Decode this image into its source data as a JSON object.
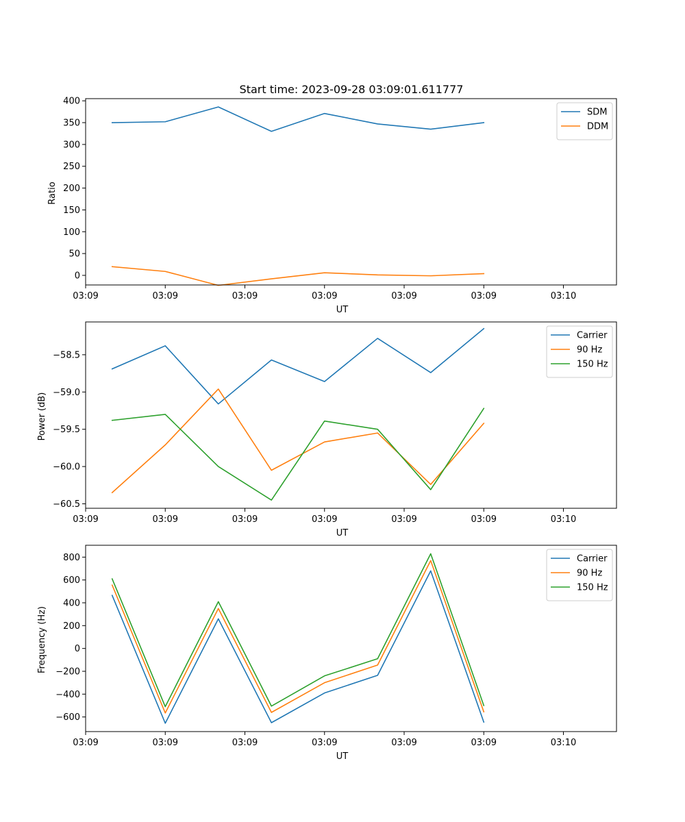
{
  "title": "Start time: 2023-09-28 03:09:01.611777",
  "colors": {
    "blue": "#1f77b4",
    "orange": "#ff7f0e",
    "green": "#2ca02c"
  },
  "chart_data": [
    {
      "type": "line",
      "xlabel": "UT",
      "ylabel": "Ratio",
      "x": [
        1,
        2,
        3,
        4,
        5,
        6,
        7,
        8
      ],
      "xlim": [
        0.5,
        10.5
      ],
      "xticks": [
        0.5,
        2.0,
        3.5,
        5.0,
        6.5,
        8.0,
        9.5
      ],
      "xtick_labels": [
        "03:09",
        "03:09",
        "03:09",
        "03:09",
        "03:09",
        "03:09",
        "03:10"
      ],
      "ylim": [
        -22,
        405
      ],
      "yticks": [
        0,
        50,
        100,
        150,
        200,
        250,
        300,
        350,
        400
      ],
      "ytick_labels": [
        "0",
        "50",
        "100",
        "150",
        "200",
        "250",
        "300",
        "350",
        "400"
      ],
      "legend": "top-right",
      "series": [
        {
          "name": "SDM",
          "color": "#1f77b4",
          "values": [
            350,
            352,
            386,
            330,
            371,
            347,
            335,
            350
          ]
        },
        {
          "name": "DDM",
          "color": "#ff7f0e",
          "values": [
            20,
            9,
            -23,
            -8,
            6,
            1,
            -1,
            4
          ]
        }
      ]
    },
    {
      "type": "line",
      "xlabel": "UT",
      "ylabel": "Power (dB)",
      "x": [
        1,
        2,
        3,
        4,
        5,
        6,
        7,
        8
      ],
      "xlim": [
        0.5,
        10.5
      ],
      "xticks": [
        0.5,
        2.0,
        3.5,
        5.0,
        6.5,
        8.0,
        9.5
      ],
      "xtick_labels": [
        "03:09",
        "03:09",
        "03:09",
        "03:09",
        "03:09",
        "03:09",
        "03:10"
      ],
      "ylim": [
        -60.56,
        -58.06
      ],
      "yticks": [
        -60.5,
        -60.0,
        -59.5,
        -59.0,
        -58.5
      ],
      "ytick_labels": [
        "−60.5",
        "−60.0",
        "−59.5",
        "−59.0",
        "−58.5"
      ],
      "legend": "top-right",
      "series": [
        {
          "name": "Carrier",
          "color": "#1f77b4",
          "values": [
            -58.69,
            -58.38,
            -59.16,
            -58.57,
            -58.86,
            -58.28,
            -58.74,
            -58.15
          ]
        },
        {
          "name": "90 Hz",
          "color": "#ff7f0e",
          "values": [
            -60.35,
            -59.71,
            -58.96,
            -60.05,
            -59.67,
            -59.55,
            -60.24,
            -59.42
          ]
        },
        {
          "name": "150 Hz",
          "color": "#2ca02c",
          "values": [
            -59.38,
            -59.3,
            -60.0,
            -60.45,
            -59.39,
            -59.5,
            -60.31,
            -59.22
          ]
        }
      ]
    },
    {
      "type": "line",
      "xlabel": "UT",
      "ylabel": "Frequency (Hz)",
      "x": [
        1,
        2,
        3,
        4,
        5,
        6,
        7,
        8
      ],
      "xlim": [
        0.5,
        10.5
      ],
      "xticks": [
        0.5,
        2.0,
        3.5,
        5.0,
        6.5,
        8.0,
        9.5
      ],
      "xtick_labels": [
        "03:09",
        "03:09",
        "03:09",
        "03:09",
        "03:09",
        "03:09",
        "03:10"
      ],
      "ylim": [
        -728,
        904
      ],
      "yticks": [
        -600,
        -400,
        -200,
        0,
        200,
        400,
        600,
        800
      ],
      "ytick_labels": [
        "−600",
        "−400",
        "−200",
        "0",
        "200",
        "400",
        "600",
        "800"
      ],
      "legend": "top-right",
      "series": [
        {
          "name": "Carrier",
          "color": "#1f77b4",
          "values": [
            465,
            -655,
            260,
            -650,
            -390,
            -235,
            680,
            -645
          ]
        },
        {
          "name": "90 Hz",
          "color": "#ff7f0e",
          "values": [
            555,
            -565,
            350,
            -560,
            -300,
            -145,
            770,
            -555
          ]
        },
        {
          "name": "150 Hz",
          "color": "#2ca02c",
          "values": [
            610,
            -510,
            410,
            -505,
            -240,
            -90,
            830,
            -500
          ]
        }
      ]
    }
  ]
}
